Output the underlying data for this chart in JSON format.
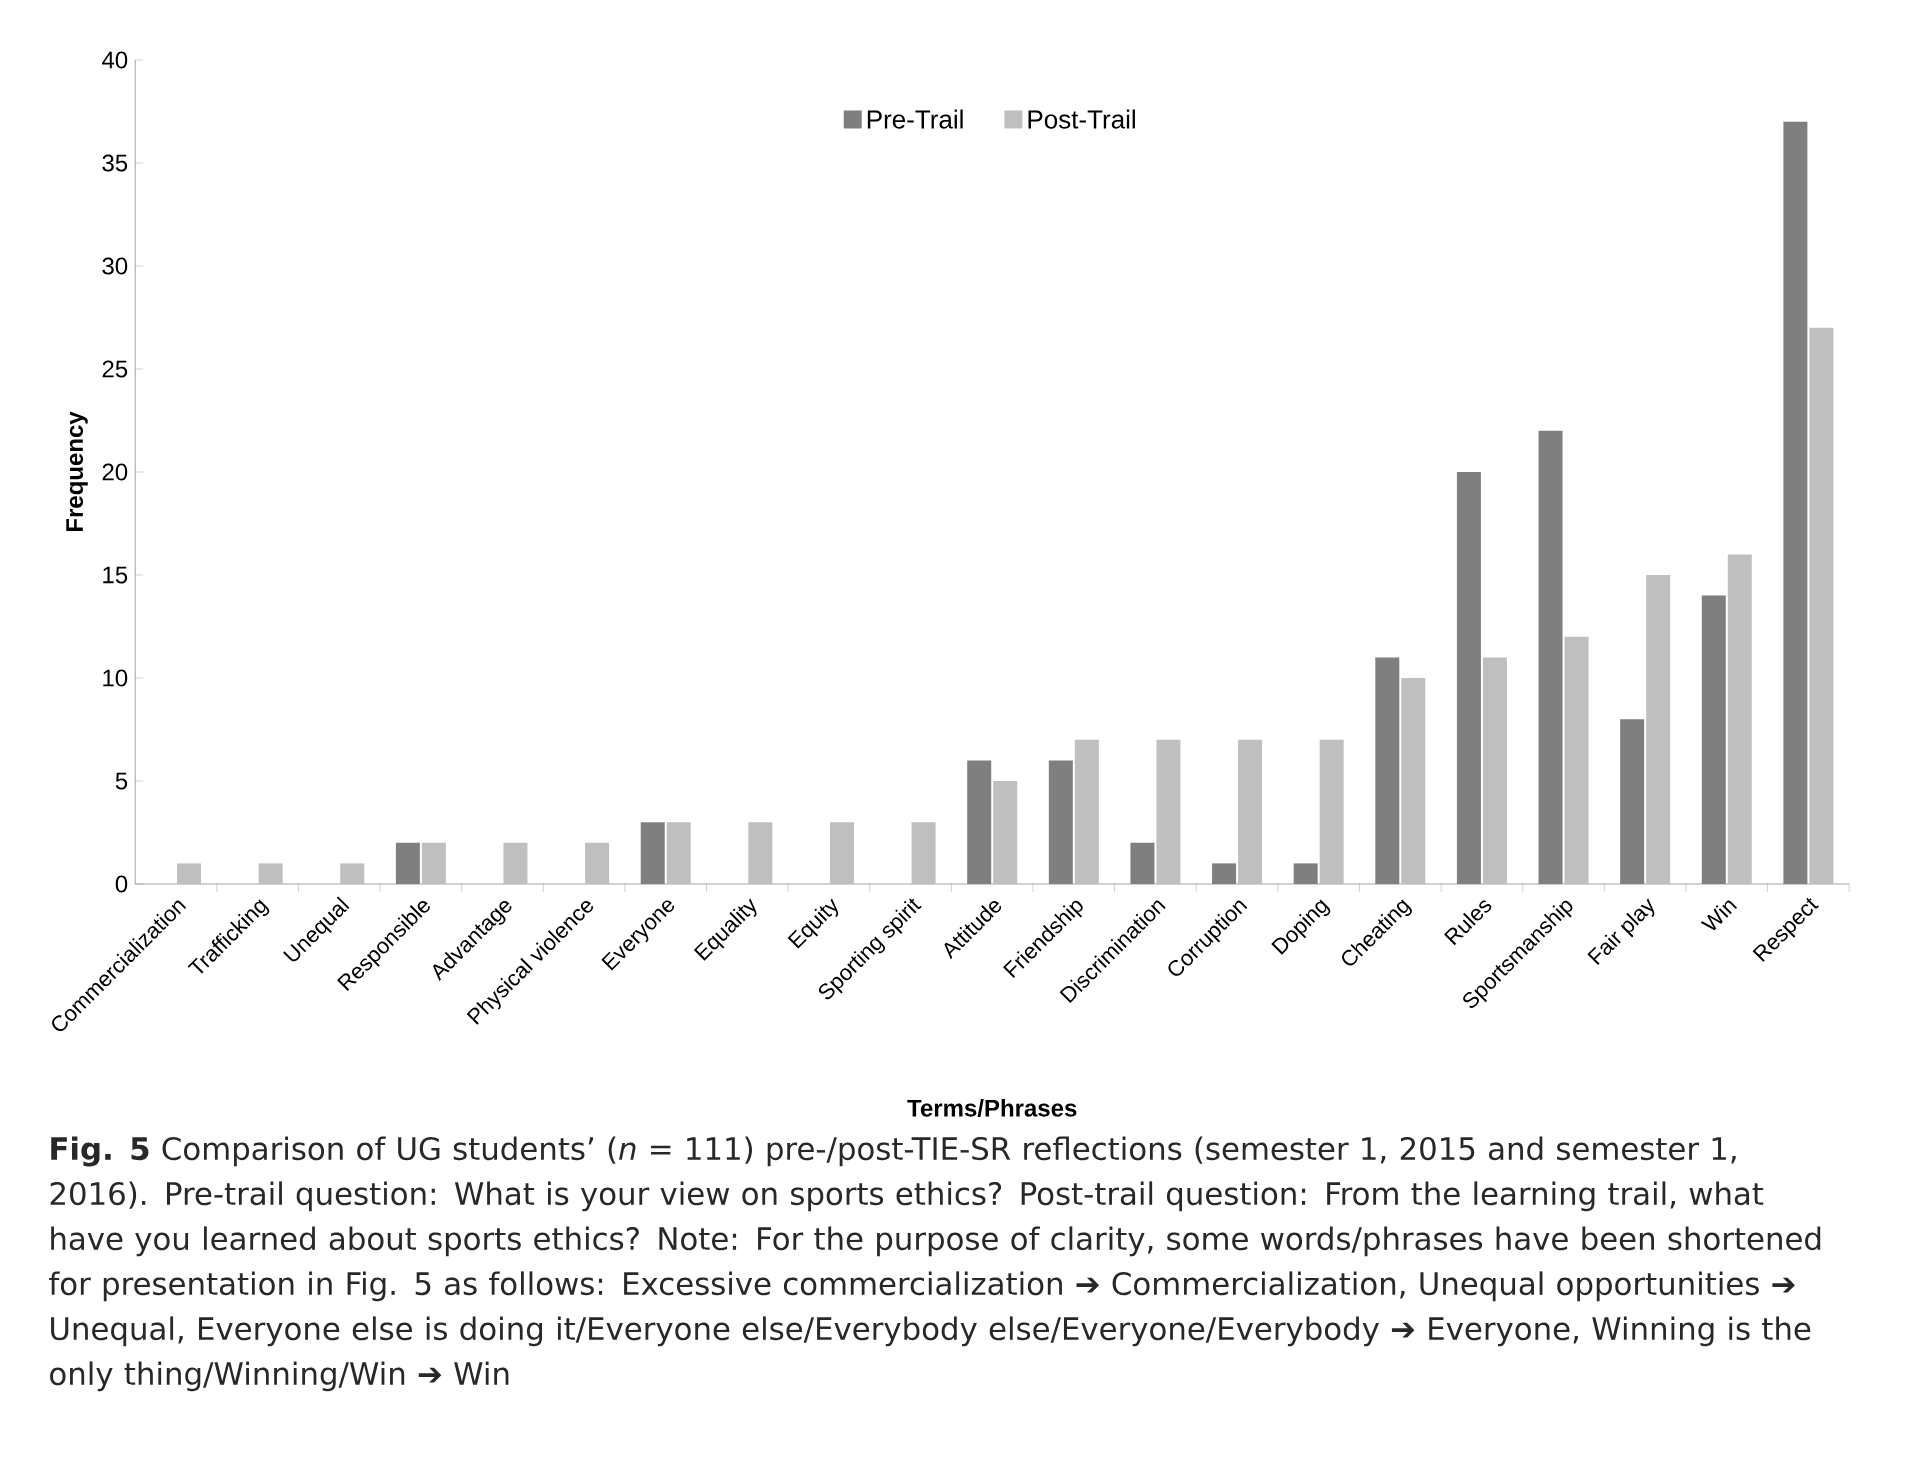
{
  "chart_data": {
    "type": "bar",
    "xlabel": "Terms/Phrases",
    "ylabel": "Frequency",
    "categories": [
      "Commercialization",
      "Trafficking",
      "Unequal",
      "Responsible",
      "Advantage",
      "Physical violence",
      "Everyone",
      "Equality",
      "Equity",
      "Sporting spirit",
      "Attitude",
      "Friendship",
      "Discrimination",
      "Corruption",
      "Doping",
      "Cheating",
      "Rules",
      "Sportsmanship",
      "Fair play",
      "Win",
      "Respect"
    ],
    "series": [
      {
        "name": "Pre-Trail",
        "color": "#7f7f7f",
        "values": [
          0,
          0,
          0,
          2,
          0,
          0,
          3,
          0,
          0,
          0,
          6,
          6,
          2,
          1,
          1,
          11,
          20,
          22,
          8,
          14,
          37
        ]
      },
      {
        "name": "Post-Trail",
        "color": "#bfbfbf",
        "values": [
          1,
          1,
          1,
          2,
          2,
          2,
          3,
          3,
          3,
          3,
          5,
          7,
          7,
          7,
          7,
          10,
          11,
          12,
          15,
          16,
          27
        ]
      }
    ],
    "ylim": [
      0,
      40
    ],
    "yticks": [
      0,
      5,
      10,
      15,
      20,
      25,
      30,
      35,
      40
    ],
    "grid": false,
    "legend": "top",
    "annotations": [
      "**Fig. 5** Comparison of UG students’ (*n* = 111) pre-/post-TIE-SR reflections (semester 1, 2015 and semester 1, 2016). Pre-trail question: What is your view on sports ethics? Post-trail question: From the learning trail, what have you learned about sports ethics? Note: For the purpose of clarity, some words/phrases have been shortened for presentation in Fig. 5 as follows: Excessive commercialization ➔ Commercialization, Unequal opportunities ➔ Unequal, Everyone else is doing it/Everyone else/Everybody else/Everyone/Everybody ➔ Everyone, Winning is the only thing/Winning/Win ➔ Win"
    ]
  }
}
